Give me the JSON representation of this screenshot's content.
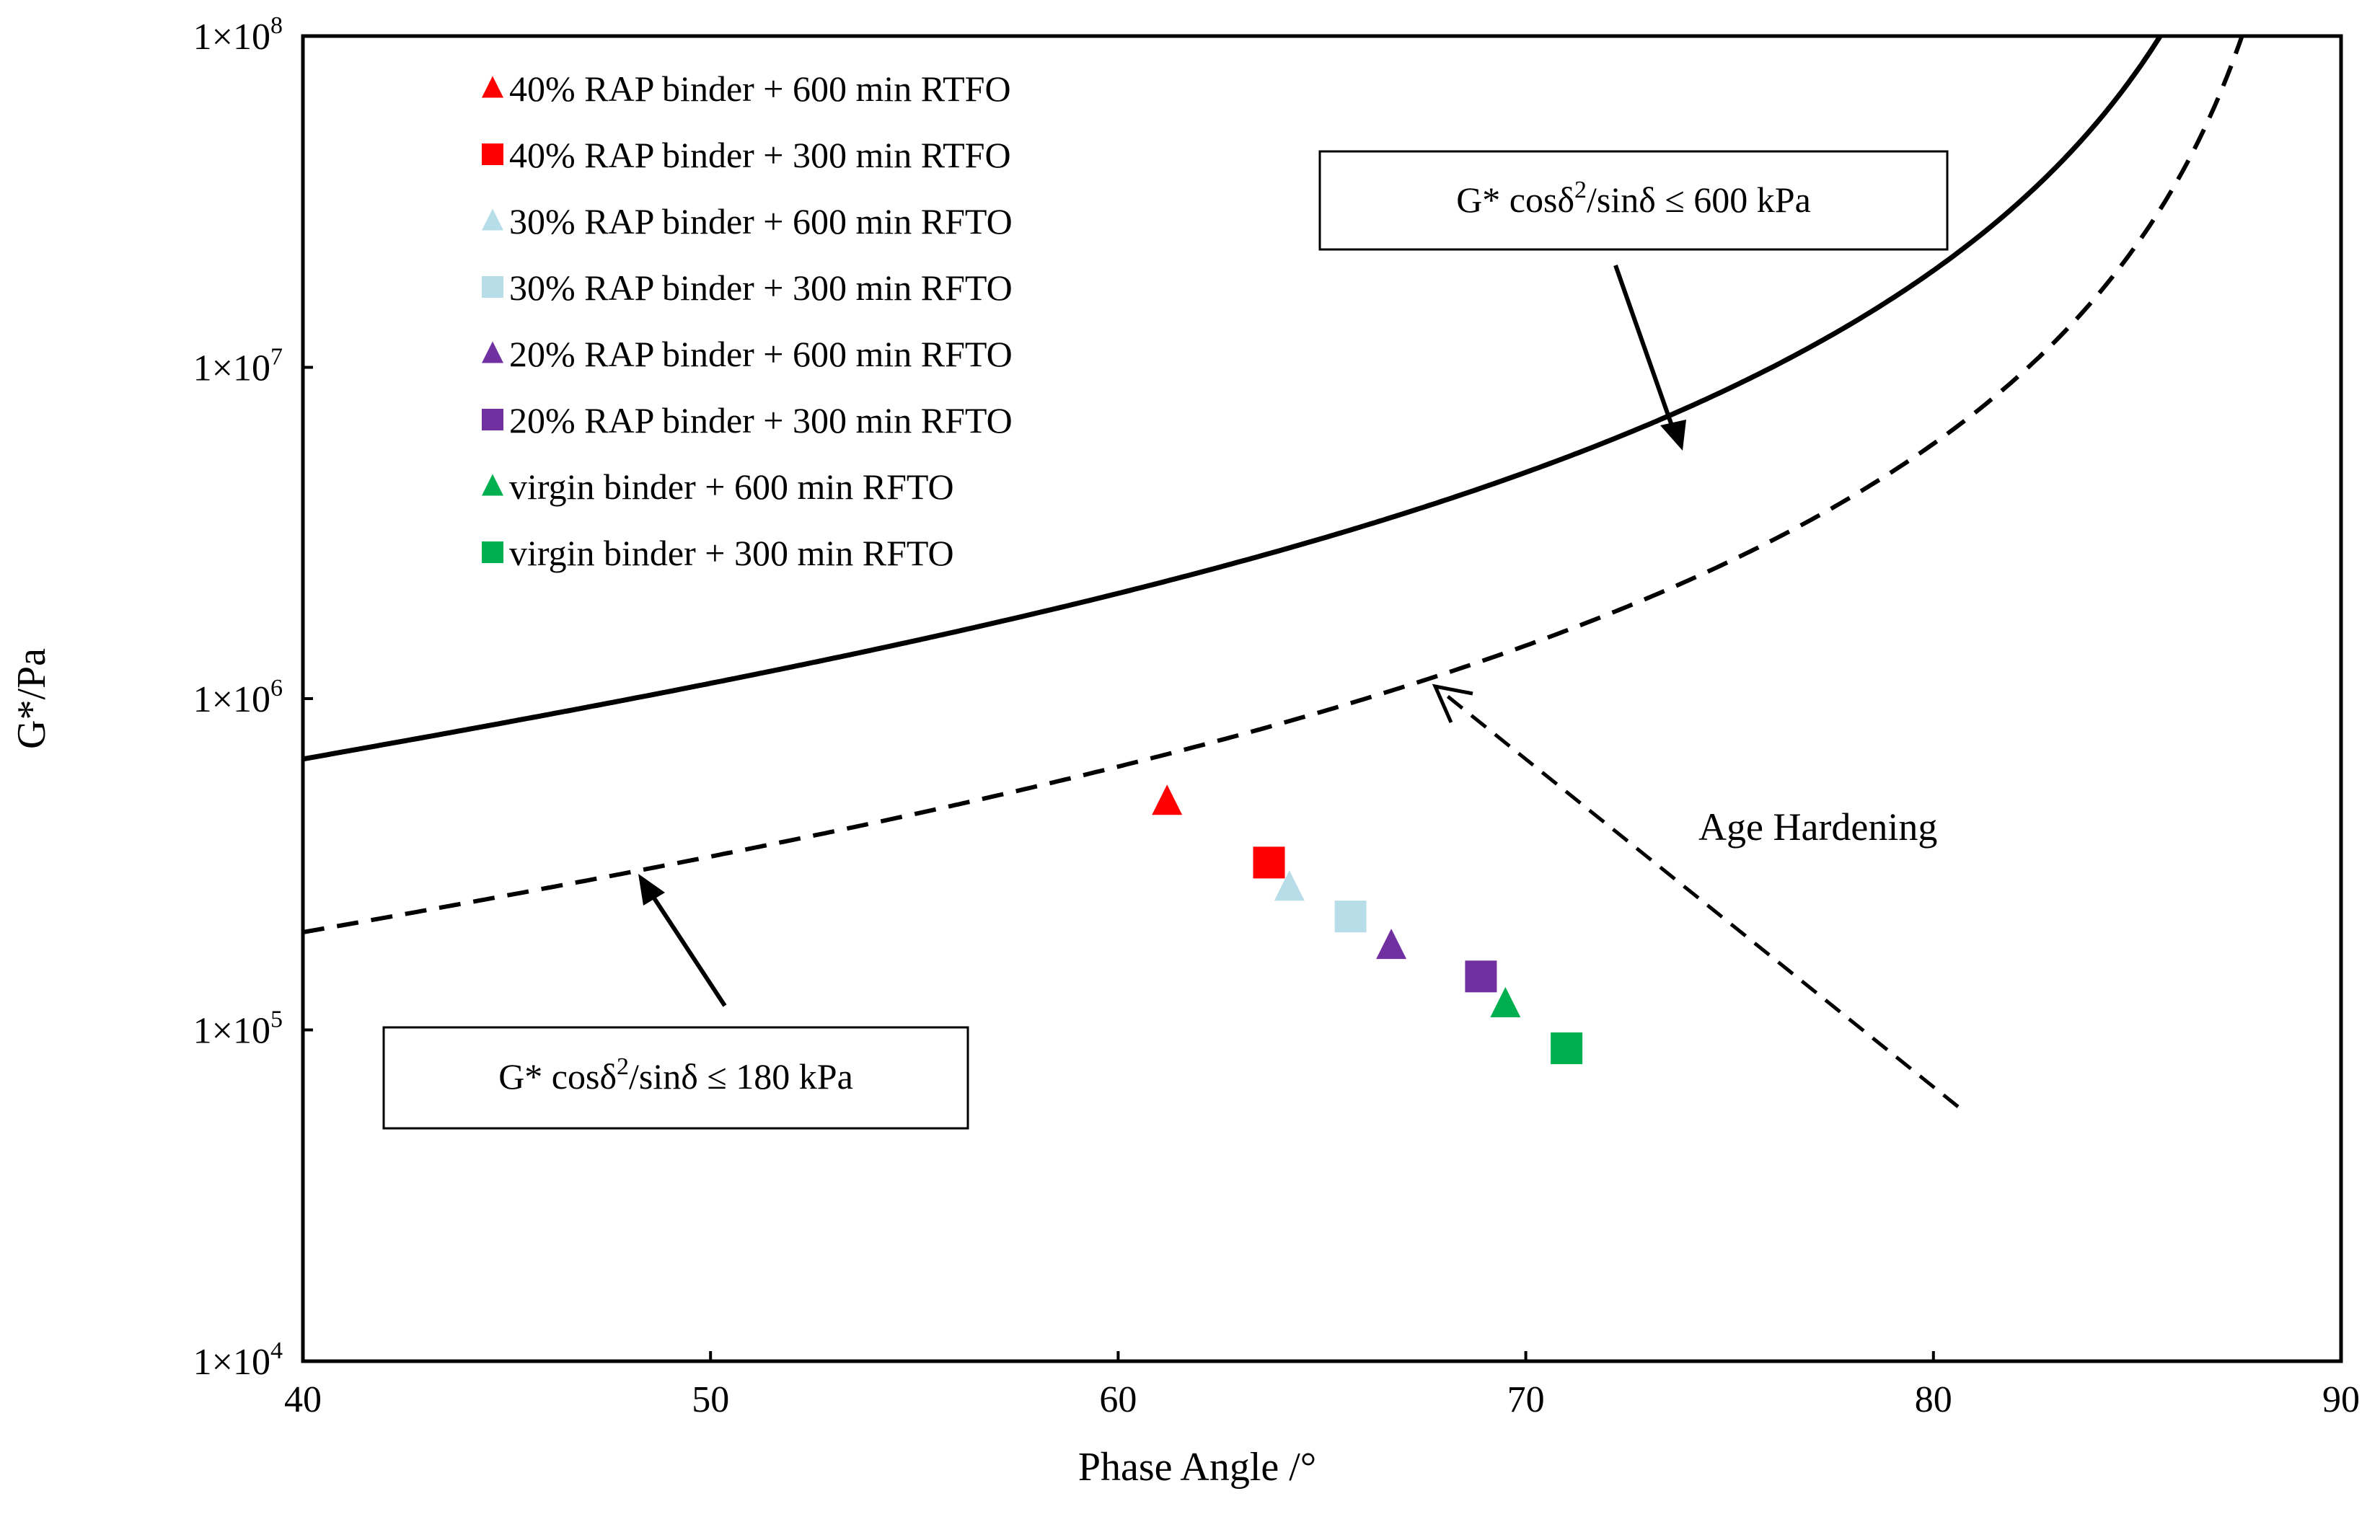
{
  "chart_data": {
    "type": "scatter",
    "xlabel": "Phase Angle /°",
    "ylabel": "G*/Pa",
    "xlim": [
      40,
      90
    ],
    "ylim": [
      10000,
      100000000
    ],
    "yscale": "log",
    "x_ticks": [
      40,
      50,
      60,
      70,
      80,
      90
    ],
    "y_ticks": [
      {
        "value": 10000,
        "mantissa": "1×10",
        "exponent": "4"
      },
      {
        "value": 100000,
        "mantissa": "1×10",
        "exponent": "5"
      },
      {
        "value": 1000000,
        "mantissa": "1×10",
        "exponent": "6"
      },
      {
        "value": 10000000,
        "mantissa": "1×10",
        "exponent": "7"
      },
      {
        "value": 100000000,
        "mantissa": "1×10",
        "exponent": "8"
      }
    ],
    "series": [
      {
        "name": "40% RAP binder + 600 min RTFO",
        "marker": "triangle",
        "color": "#ff0000",
        "x": 61.2,
        "y": 490000
      },
      {
        "name": "40% RAP binder + 300 min RTFO",
        "marker": "square",
        "color": "#ff0000",
        "x": 63.7,
        "y": 320000
      },
      {
        "name": "30% RAP binder + 600 min RFTO",
        "marker": "triangle",
        "color": "#b7dde8",
        "x": 64.2,
        "y": 270000
      },
      {
        "name": "30% RAP binder + 300 min RFTO",
        "marker": "square",
        "color": "#b7dde8",
        "x": 65.7,
        "y": 220000
      },
      {
        "name": "20% RAP binder + 600 min RFTO",
        "marker": "triangle",
        "color": "#7030a0",
        "x": 66.7,
        "y": 180000
      },
      {
        "name": "20% RAP binder + 300 min RFTO",
        "marker": "square",
        "color": "#7030a0",
        "x": 68.9,
        "y": 145000
      },
      {
        "name": "virgin binder + 600 min RFTO",
        "marker": "triangle",
        "color": "#00b050",
        "x": 69.5,
        "y": 120000
      },
      {
        "name": "virgin binder + 300 min RFTO",
        "marker": "square",
        "color": "#00b050",
        "x": 71.0,
        "y": 88000
      }
    ],
    "curves": [
      {
        "name": "G* cosδ2/sinδ ≤ 600 kPa",
        "style": "solid",
        "limit_pa": 600000
      },
      {
        "name": "G* cosδ2/sinδ ≤ 180 kPa",
        "style": "dashed",
        "limit_pa": 180000
      }
    ],
    "annotations": {
      "upper_box": {
        "main": "G* cosδ",
        "sup": "2",
        "rest": "/sinδ ≤ 600 kPa"
      },
      "lower_box": {
        "main": "G* cosδ",
        "sup": "2",
        "rest": "/sinδ ≤ 180 kPa"
      },
      "age_hardening": "Age Hardening"
    }
  }
}
